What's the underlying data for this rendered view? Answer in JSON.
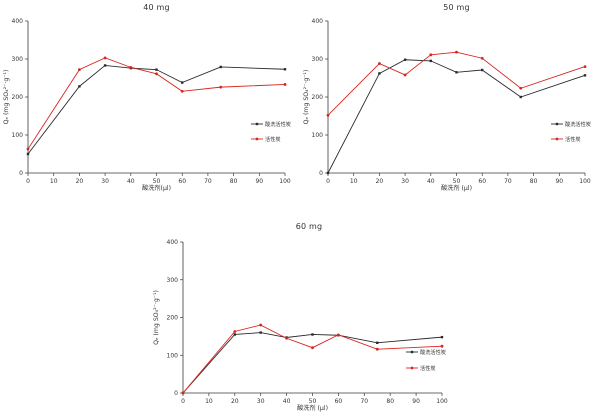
{
  "figure": {
    "background": "#ffffff",
    "axis_color": "#3a3a3a",
    "text_color": "#333333"
  },
  "chart_data": [
    {
      "type": "line",
      "title": "40 mg",
      "xlabel": "酸洗剂(μl)",
      "ylabel": "Qₑ (mg SO₄²⁻·g⁻¹)",
      "xlim": [
        0,
        100
      ],
      "ylim": [
        0,
        400
      ],
      "x_ticks": [
        0,
        10,
        20,
        30,
        40,
        50,
        60,
        70,
        80,
        90,
        100
      ],
      "y_ticks": [
        0,
        100,
        200,
        300,
        400
      ],
      "grid": false,
      "legend_position": "right-middle",
      "x": [
        0,
        20,
        30,
        40,
        50,
        60,
        75,
        100
      ],
      "series": [
        {
          "name": "酸洗活性炭",
          "color": "#2b2b2b",
          "marker": "square",
          "values": [
            50,
            228,
            283,
            276,
            272,
            238,
            279,
            273
          ]
        },
        {
          "name": "活性炭",
          "color": "#d9251f",
          "marker": "circle",
          "values": [
            63,
            272,
            303,
            278,
            261,
            215,
            226,
            233
          ]
        }
      ]
    },
    {
      "type": "line",
      "title": "50 mg",
      "xlabel": "酸洗剂 (μl)",
      "ylabel": "Qₑ (mg SO₄²⁻·g⁻¹)",
      "xlim": [
        0,
        100
      ],
      "ylim": [
        0,
        400
      ],
      "x_ticks": [
        0,
        10,
        20,
        30,
        40,
        50,
        60,
        70,
        80,
        90,
        100
      ],
      "y_ticks": [
        0,
        100,
        200,
        300,
        400
      ],
      "grid": false,
      "legend_position": "right-middle",
      "x": [
        0,
        20,
        30,
        40,
        50,
        60,
        75,
        100
      ],
      "series": [
        {
          "name": "酸洗活性炭",
          "color": "#2b2b2b",
          "marker": "square",
          "values": [
            0,
            262,
            298,
            295,
            265,
            271,
            200,
            257
          ]
        },
        {
          "name": "活性炭",
          "color": "#d9251f",
          "marker": "circle",
          "values": [
            152,
            288,
            258,
            311,
            318,
            302,
            223,
            280
          ]
        }
      ]
    },
    {
      "type": "line",
      "title": "60 mg",
      "xlabel": "酸洗剂 (μl)",
      "ylabel": "Qₑ (mg SO₄²⁻·g⁻¹)",
      "xlim": [
        0,
        100
      ],
      "ylim": [
        0,
        400
      ],
      "x_ticks": [
        0,
        10,
        20,
        30,
        40,
        50,
        60,
        70,
        80,
        90,
        100
      ],
      "y_ticks": [
        0,
        100,
        200,
        300,
        400
      ],
      "grid": false,
      "legend_position": "right-middle",
      "x": [
        0,
        20,
        30,
        40,
        50,
        60,
        75,
        100
      ],
      "series": [
        {
          "name": "酸洗活性炭",
          "color": "#2b2b2b",
          "marker": "square",
          "values": [
            0,
            155,
            160,
            147,
            155,
            153,
            133,
            148
          ]
        },
        {
          "name": "活性炭",
          "color": "#d9251f",
          "marker": "circle",
          "values": [
            0,
            163,
            180,
            145,
            120,
            154,
            116,
            124
          ]
        }
      ]
    }
  ]
}
